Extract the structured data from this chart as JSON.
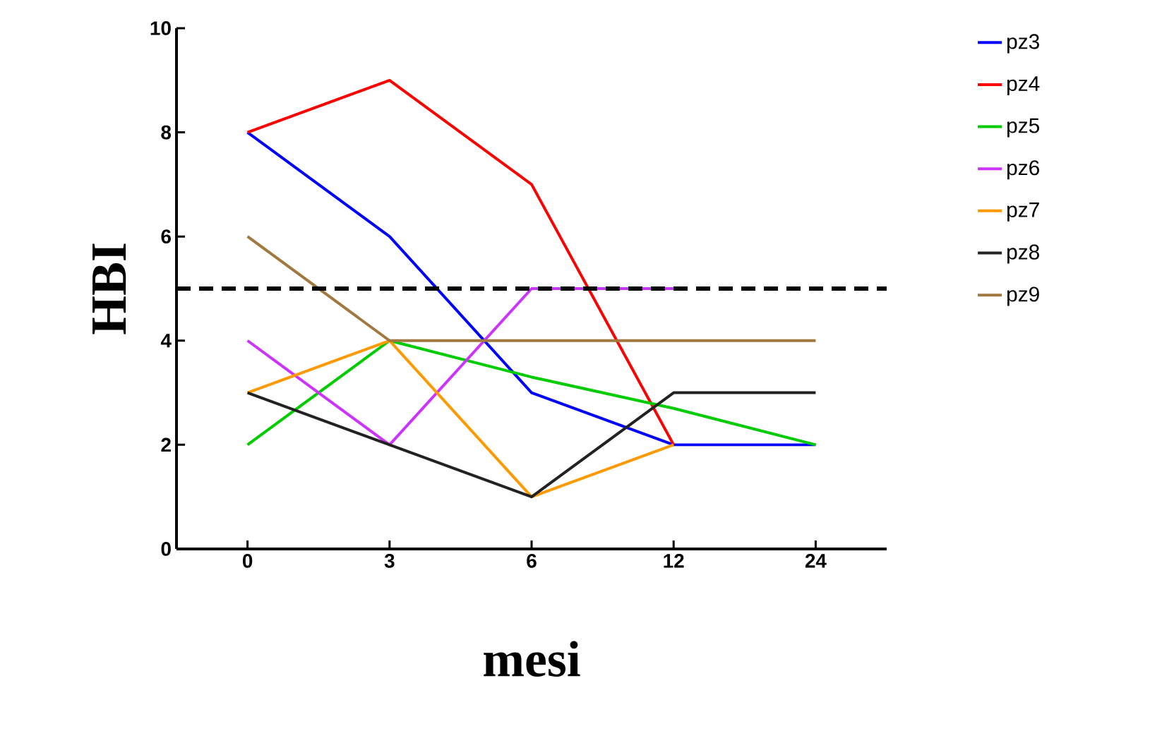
{
  "chart_data": {
    "type": "line",
    "xlabel": "mesi",
    "ylabel": "HBI",
    "categories": [
      "0",
      "3",
      "6",
      "12",
      "24"
    ],
    "series": [
      {
        "name": "pz3",
        "color": "#0000ff",
        "values": [
          8,
          6,
          3,
          2,
          2
        ]
      },
      {
        "name": "pz4",
        "color": "#ff0000",
        "values": [
          8,
          9,
          7,
          2,
          null
        ]
      },
      {
        "name": "pz5",
        "color": "#00cc00",
        "values": [
          2,
          4,
          3.3,
          2.7,
          2
        ]
      },
      {
        "name": "pz6",
        "color": "#cc33ff",
        "values": [
          4,
          2,
          5,
          5,
          null
        ]
      },
      {
        "name": "pz7",
        "color": "#ff9900",
        "values": [
          3,
          4,
          1,
          2,
          null
        ]
      },
      {
        "name": "pz8",
        "color": "#222222",
        "values": [
          3,
          2,
          1,
          3,
          3
        ]
      },
      {
        "name": "pz9",
        "color": "#a07840",
        "values": [
          6,
          4,
          4,
          4,
          4
        ]
      }
    ],
    "ylim": [
      0,
      10
    ],
    "yticks": [
      0,
      2,
      4,
      6,
      8,
      10
    ],
    "ref_lines": [
      {
        "axis": "y",
        "value": 5,
        "color": "#000000",
        "line_style": "dashed"
      }
    ],
    "legend": "right",
    "marker": "none",
    "grid": false
  }
}
